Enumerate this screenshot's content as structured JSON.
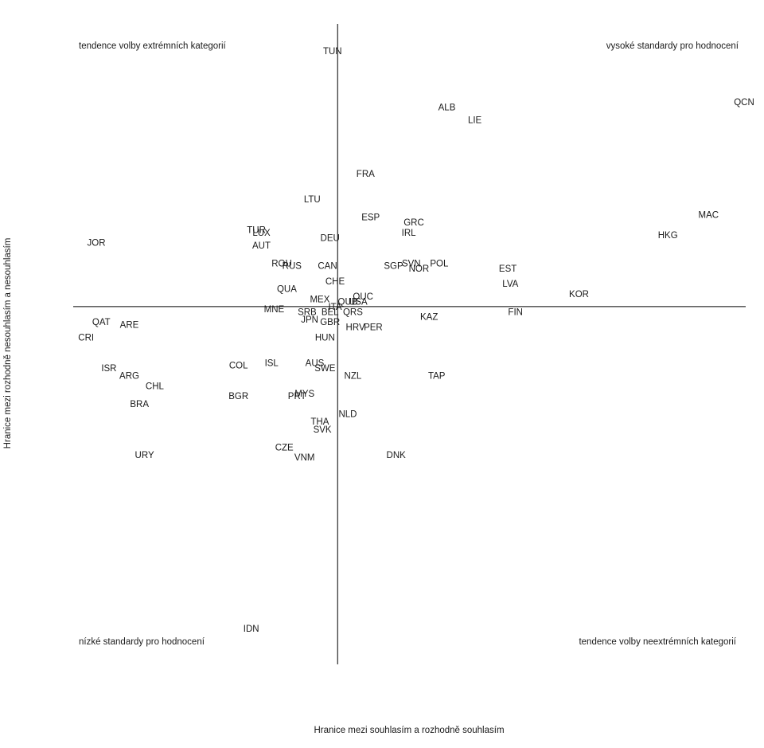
{
  "chart_data": {
    "type": "scatter",
    "title": "",
    "xlabel": "Hranice mezi souhlasím a rozhodně souhlasím",
    "ylabel": "Hranice mezi rozhodně nesouhlasím a nesouhlasím",
    "quadrant_labels": {
      "top_left": "tendence volby extrémních kategorií",
      "top_right": "vysoké standardy pro hodnocení",
      "bottom_left": "nízké standardy pro hodnocení",
      "bottom_right": "tendence volby neextrémních kategorií"
    },
    "xlim": [
      -1.0,
      1.6
    ],
    "ylim": [
      -1.4,
      1.1
    ],
    "axes_cross": [
      0,
      0
    ],
    "grid": false,
    "legend": "none",
    "points": [
      {
        "label": "TUN",
        "x": -0.02,
        "y": 1.0
      },
      {
        "label": "QCN",
        "x": 1.6,
        "y": 0.8
      },
      {
        "label": "ALB",
        "x": 0.43,
        "y": 0.78
      },
      {
        "label": "LIE",
        "x": 0.54,
        "y": 0.73
      },
      {
        "label": "FRA",
        "x": 0.11,
        "y": 0.52
      },
      {
        "label": "LTU",
        "x": -0.1,
        "y": 0.42
      },
      {
        "label": "MAC",
        "x": 1.46,
        "y": 0.36
      },
      {
        "label": "ESP",
        "x": 0.13,
        "y": 0.35
      },
      {
        "label": "GRC",
        "x": 0.3,
        "y": 0.33
      },
      {
        "label": "HKG",
        "x": 1.3,
        "y": 0.28
      },
      {
        "label": "TUR",
        "x": -0.32,
        "y": 0.3
      },
      {
        "label": "IRL",
        "x": 0.28,
        "y": 0.29
      },
      {
        "label": "LUX",
        "x": -0.3,
        "y": 0.29
      },
      {
        "label": "DEU",
        "x": -0.03,
        "y": 0.27
      },
      {
        "label": "JOR",
        "x": -0.95,
        "y": 0.25
      },
      {
        "label": "AUT",
        "x": -0.3,
        "y": 0.24
      },
      {
        "label": "ROU",
        "x": -0.22,
        "y": 0.17
      },
      {
        "label": "POL",
        "x": 0.4,
        "y": 0.17
      },
      {
        "label": "RUS",
        "x": -0.18,
        "y": 0.16
      },
      {
        "label": "SGP",
        "x": 0.22,
        "y": 0.16
      },
      {
        "label": "SVN",
        "x": 0.29,
        "y": 0.17
      },
      {
        "label": "CAN",
        "x": -0.04,
        "y": 0.16
      },
      {
        "label": "EST",
        "x": 0.67,
        "y": 0.15
      },
      {
        "label": "NOR",
        "x": 0.32,
        "y": 0.15
      },
      {
        "label": "CHE",
        "x": -0.01,
        "y": 0.1
      },
      {
        "label": "LVA",
        "x": 0.68,
        "y": 0.09
      },
      {
        "label": "QUA",
        "x": -0.2,
        "y": 0.07
      },
      {
        "label": "KOR",
        "x": 0.95,
        "y": 0.05
      },
      {
        "label": "QUC",
        "x": 0.1,
        "y": 0.04
      },
      {
        "label": "MEX",
        "x": -0.07,
        "y": 0.03
      },
      {
        "label": "USA",
        "x": 0.08,
        "y": 0.02
      },
      {
        "label": "QUB",
        "x": 0.04,
        "y": 0.02
      },
      {
        "label": "ITA",
        "x": -0.01,
        "y": 0.0
      },
      {
        "label": "MNE",
        "x": -0.25,
        "y": -0.01
      },
      {
        "label": "SRB",
        "x": -0.12,
        "y": -0.02
      },
      {
        "label": "FIN",
        "x": 0.7,
        "y": -0.02
      },
      {
        "label": "BEL",
        "x": -0.03,
        "y": -0.02
      },
      {
        "label": "QRS",
        "x": 0.06,
        "y": -0.02
      },
      {
        "label": "KAZ",
        "x": 0.36,
        "y": -0.04
      },
      {
        "label": "QAT",
        "x": -0.93,
        "y": -0.06
      },
      {
        "label": "JPN",
        "x": -0.11,
        "y": -0.05
      },
      {
        "label": "GBR",
        "x": -0.03,
        "y": -0.06
      },
      {
        "label": "ARE",
        "x": -0.82,
        "y": -0.07
      },
      {
        "label": "HRV",
        "x": 0.07,
        "y": -0.08
      },
      {
        "label": "PER",
        "x": 0.14,
        "y": -0.08
      },
      {
        "label": "HUN",
        "x": -0.05,
        "y": -0.12
      },
      {
        "label": "CRI",
        "x": -0.99,
        "y": -0.12
      },
      {
        "label": "ISL",
        "x": -0.26,
        "y": -0.22
      },
      {
        "label": "AUS",
        "x": -0.09,
        "y": -0.22
      },
      {
        "label": "COL",
        "x": -0.39,
        "y": -0.23
      },
      {
        "label": "ISR",
        "x": -0.9,
        "y": -0.24
      },
      {
        "label": "SWE",
        "x": -0.05,
        "y": -0.24
      },
      {
        "label": "TAP",
        "x": 0.39,
        "y": -0.27
      },
      {
        "label": "NZL",
        "x": 0.06,
        "y": -0.27
      },
      {
        "label": "ARG",
        "x": -0.82,
        "y": -0.27
      },
      {
        "label": "CHL",
        "x": -0.72,
        "y": -0.31
      },
      {
        "label": "MYS",
        "x": -0.13,
        "y": -0.34
      },
      {
        "label": "BGR",
        "x": -0.39,
        "y": -0.35
      },
      {
        "label": "PRT",
        "x": -0.16,
        "y": -0.35
      },
      {
        "label": "BRA",
        "x": -0.78,
        "y": -0.38
      },
      {
        "label": "NLD",
        "x": 0.04,
        "y": -0.42
      },
      {
        "label": "THA",
        "x": -0.07,
        "y": -0.45
      },
      {
        "label": "SVK",
        "x": -0.06,
        "y": -0.48
      },
      {
        "label": "CZE",
        "x": -0.21,
        "y": -0.55
      },
      {
        "label": "URY",
        "x": -0.76,
        "y": -0.58
      },
      {
        "label": "DNK",
        "x": 0.23,
        "y": -0.58
      },
      {
        "label": "VNM",
        "x": -0.13,
        "y": -0.59
      },
      {
        "label": "IDN",
        "x": -0.34,
        "y": -1.26
      }
    ]
  }
}
